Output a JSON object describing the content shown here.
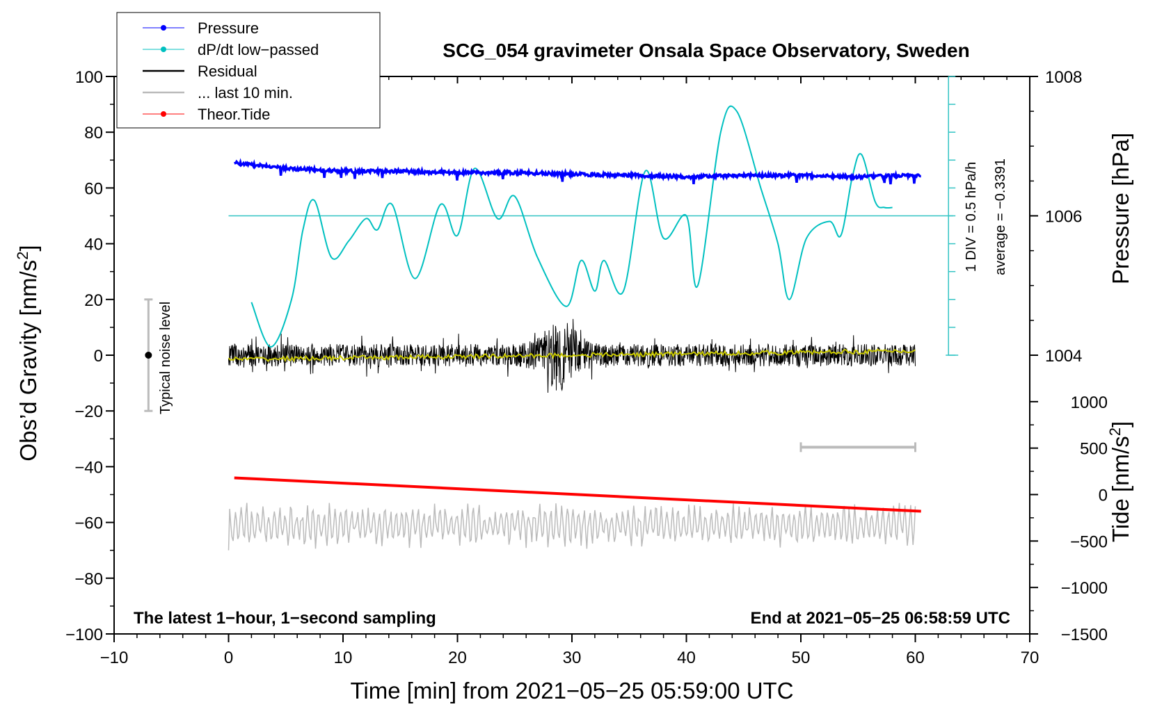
{
  "chart_data": {
    "type": "line",
    "title": "SCG_054 gravimeter Onsala Space Observatory, Sweden",
    "xlabel": "Time [min] from 2021−05−25 05:59:00 UTC",
    "ylabel_left": "Obs’d Gravity [nm/s",
    "ylabel_left_sup": "2",
    "ylabel_left_close": "]",
    "ylabel_right_pressure": "Pressure [hPa]",
    "ylabel_right_tide": "Tide [nm/s",
    "ylabel_right_tide_sup": "2",
    "ylabel_right_tide_close": "]",
    "xlim": [
      -10,
      70
    ],
    "ylim": [
      -100,
      100
    ],
    "x_ticks": [
      "−10",
      "0",
      "10",
      "20",
      "30",
      "40",
      "50",
      "60",
      "70"
    ],
    "x_tick_values": [
      -10,
      0,
      10,
      20,
      30,
      40,
      50,
      60,
      70
    ],
    "y_ticks": [
      "−100",
      "−80",
      "−60",
      "−40",
      "−20",
      "0",
      "20",
      "40",
      "60",
      "80",
      "100"
    ],
    "y_tick_values": [
      -100,
      -80,
      -60,
      -40,
      -20,
      0,
      20,
      40,
      60,
      80,
      100
    ],
    "pressure_axis": {
      "ticks": [
        "1004",
        "1006",
        "1008"
      ],
      "tick_values": [
        1004,
        1006,
        1008
      ],
      "map_gravity_at_1006": 50,
      "gravity_per_hPa": 25
    },
    "tide_axis": {
      "ticks": [
        "1000",
        "500",
        "0",
        "−500",
        "−1000",
        "−1500"
      ],
      "tick_values": [
        1000,
        500,
        0,
        -500,
        -1000,
        -1500
      ],
      "map_gravity_at_0": -50,
      "gravity_per_unit": 0.03333
    },
    "legend": [
      {
        "label": "Pressure",
        "color": "#0000ff",
        "marker": true
      },
      {
        "label": "dP/dt low−passed",
        "color": "#00c0c0",
        "marker": true
      },
      {
        "label": "Residual",
        "color": "#000000",
        "marker": false
      },
      {
        "label": "... last 10 min.",
        "color": "#bbbbbb",
        "marker": false
      },
      {
        "label": "Theor.Tide",
        "color": "#ff0000",
        "marker": true
      }
    ],
    "annotations": {
      "bottom_left": "The latest 1−hour, 1−second sampling",
      "bottom_right": "End at 2021−05−25 06:58:59 UTC",
      "noise_label": "Typical noise level",
      "dpdt_scale": "1 DIV = 0.5 hPa/h",
      "dpdt_average": "average = −0.3391"
    },
    "noise_bar": {
      "x": -7,
      "center": 0,
      "half_range": 20
    },
    "last10_bar": {
      "x_start": 50,
      "x_end": 60,
      "y": -33
    },
    "dpdt_baseline": 50,
    "series": [
      {
        "name": "Pressure",
        "color": "#0000ff",
        "unit": "gravity-axis",
        "x": [
          0.5,
          5,
          10,
          15,
          20,
          25,
          30,
          35,
          40,
          45,
          50,
          55,
          60.5
        ],
        "y": [
          69,
          67,
          66,
          66,
          65.5,
          65.5,
          65,
          64.5,
          64,
          64.5,
          64.5,
          64,
          64.5
        ]
      },
      {
        "name": "dP/dt low-passed",
        "color": "#00c0c0",
        "unit": "gravity-axis",
        "x": [
          2,
          3.7,
          5.5,
          6.5,
          7.5,
          9,
          10.5,
          12,
          13,
          14.3,
          16.3,
          18.5,
          20,
          21.5,
          23.5,
          25,
          27,
          29.5,
          30.8,
          32,
          32.8,
          34.5,
          36.4,
          38,
          40,
          41,
          43,
          44.4,
          46.5,
          48,
          49,
          50.5,
          52.5,
          53.5,
          54.5,
          55.3,
          56.5,
          57.3,
          58
        ],
        "y": [
          19,
          3,
          20,
          45,
          55.5,
          35,
          41,
          49,
          45,
          54,
          27.5,
          54,
          43,
          67,
          49,
          57,
          35,
          17.5,
          34,
          23,
          34,
          23,
          66,
          42,
          50,
          25,
          80,
          87.5,
          60,
          40,
          20,
          42,
          48,
          43,
          64,
          72,
          55,
          53,
          53
        ]
      },
      {
        "name": "Residual",
        "color": "#000000",
        "unit": "gravity-axis",
        "x_range": [
          0,
          60
        ],
        "center": 0,
        "amplitude": 4,
        "peak_x": 29,
        "peak_amplitude": 13
      },
      {
        "name": "Residual smoothed",
        "color": "#c8c800",
        "unit": "gravity-axis",
        "x_range": [
          0,
          60
        ],
        "start": -1.5,
        "end": 1.5
      },
      {
        "name": "... last 10 min.",
        "color": "#bbbbbb",
        "unit": "gravity-axis",
        "x_range": [
          0,
          60
        ],
        "center": -61,
        "min": -70,
        "max": -53
      },
      {
        "name": "Theor.Tide",
        "color": "#ff0000",
        "unit": "nm/s2",
        "x": [
          0.5,
          60.5
        ],
        "y": [
          180,
          -180
        ]
      }
    ]
  }
}
